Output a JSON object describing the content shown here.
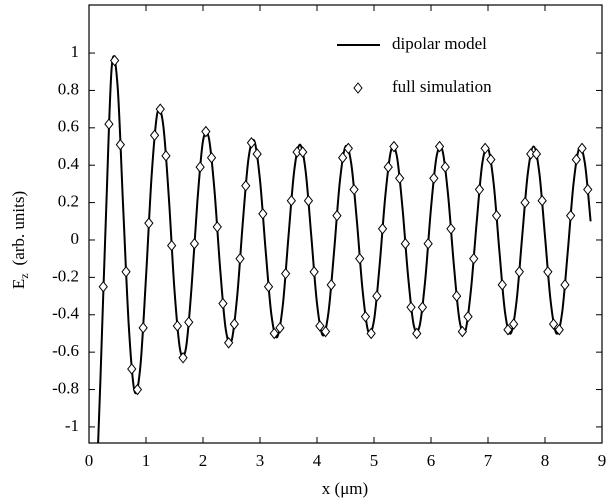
{
  "chart_data": {
    "type": "line",
    "xlabel": "x (μm)",
    "ylabel": {
      "main": "E",
      "sub": "z",
      "units": "(arb. units)"
    },
    "xlim": [
      0,
      9
    ],
    "ylim": [
      -1.086,
      1.257
    ],
    "xticks": [
      0,
      1,
      2,
      3,
      4,
      5,
      6,
      7,
      8,
      9
    ],
    "yticks": [
      -1,
      -0.8,
      -0.6,
      -0.4,
      -0.2,
      0,
      0.2,
      0.4,
      0.6,
      0.8,
      1
    ],
    "grid": false,
    "legend": "upper right",
    "series": [
      {
        "name": "dipolar model",
        "type": "line",
        "color": "#000000",
        "x": [
          0.16,
          0.2,
          0.3,
          0.4,
          0.5,
          0.6,
          0.7,
          0.8,
          0.9,
          1.0,
          1.1,
          1.2,
          1.3,
          1.4,
          1.5,
          1.6,
          1.7,
          1.8,
          1.9,
          2.0,
          2.1,
          2.2,
          2.3,
          2.4,
          2.5,
          2.6,
          2.7,
          2.8,
          2.9,
          3.0,
          3.1,
          3.2,
          3.3,
          3.4,
          3.5,
          3.6,
          3.7,
          3.8,
          3.9,
          4.0,
          4.1,
          4.2,
          4.3,
          4.4,
          4.5,
          4.6,
          4.7,
          4.8,
          4.9,
          5.0,
          5.1,
          5.2,
          5.3,
          5.4,
          5.5,
          5.6,
          5.7,
          5.8,
          5.9,
          6.0,
          6.1,
          6.2,
          6.3,
          6.4,
          6.5,
          6.6,
          6.7,
          6.8,
          6.9,
          7.0,
          7.1,
          7.2,
          7.3,
          7.4,
          7.5,
          7.6,
          7.7,
          7.8,
          7.9,
          8.0,
          8.1,
          8.2,
          8.3,
          8.4,
          8.5,
          8.6,
          8.7,
          8.8
        ],
        "values": [
          -1.085,
          -0.75,
          0.15,
          0.93,
          0.83,
          0.17,
          -0.47,
          -0.81,
          -0.68,
          -0.2,
          0.35,
          0.68,
          0.62,
          0.23,
          -0.27,
          -0.59,
          -0.58,
          -0.25,
          0.2,
          0.53,
          0.55,
          0.27,
          -0.15,
          -0.48,
          -0.54,
          -0.3,
          0.1,
          0.44,
          0.53,
          0.32,
          -0.06,
          -0.4,
          -0.52,
          -0.35,
          0.02,
          0.37,
          0.51,
          0.37,
          0.02,
          -0.34,
          -0.51,
          -0.39,
          -0.06,
          0.31,
          0.5,
          0.41,
          0.1,
          -0.27,
          -0.49,
          -0.43,
          -0.13,
          0.24,
          0.48,
          0.45,
          0.17,
          -0.2,
          -0.46,
          -0.46,
          -0.21,
          0.17,
          0.45,
          0.48,
          0.24,
          -0.13,
          -0.43,
          -0.49,
          -0.27,
          0.09,
          0.41,
          0.49,
          0.3,
          -0.06,
          -0.39,
          -0.5,
          -0.33,
          0.02,
          0.36,
          0.5,
          0.36,
          0.02,
          -0.33,
          -0.5,
          -0.39,
          -0.06,
          0.3,
          0.49,
          0.41,
          0.1
        ]
      },
      {
        "name": "full simulation",
        "type": "scatter",
        "marker": "diamond",
        "color": "#000000",
        "x": [
          0.25,
          0.35,
          0.45,
          0.55,
          0.65,
          0.75,
          0.85,
          0.95,
          1.05,
          1.15,
          1.25,
          1.35,
          1.45,
          1.55,
          1.65,
          1.75,
          1.85,
          1.95,
          2.05,
          2.15,
          2.25,
          2.35,
          2.45,
          2.55,
          2.65,
          2.75,
          2.85,
          2.95,
          3.05,
          3.15,
          3.25,
          3.35,
          3.45,
          3.55,
          3.65,
          3.75,
          3.85,
          3.95,
          4.05,
          4.15,
          4.25,
          4.35,
          4.45,
          4.55,
          4.65,
          4.75,
          4.85,
          4.95,
          5.05,
          5.15,
          5.25,
          5.35,
          5.45,
          5.55,
          5.65,
          5.75,
          5.85,
          5.95,
          6.05,
          6.15,
          6.25,
          6.35,
          6.45,
          6.55,
          6.65,
          6.75,
          6.85,
          6.95,
          7.05,
          7.15,
          7.25,
          7.35,
          7.45,
          7.55,
          7.65,
          7.75,
          7.85,
          7.95,
          8.05,
          8.15,
          8.25,
          8.35,
          8.45,
          8.55,
          8.65,
          8.75
        ],
        "values": [
          -0.25,
          0.62,
          0.96,
          0.51,
          -0.17,
          -0.69,
          -0.8,
          -0.47,
          0.09,
          0.56,
          0.7,
          0.45,
          -0.03,
          -0.46,
          -0.63,
          -0.44,
          -0.02,
          0.39,
          0.58,
          0.44,
          0.07,
          -0.34,
          -0.55,
          -0.45,
          -0.1,
          0.29,
          0.52,
          0.46,
          0.14,
          -0.25,
          -0.5,
          -0.47,
          -0.18,
          0.21,
          0.47,
          0.47,
          0.21,
          -0.17,
          -0.46,
          -0.49,
          -0.24,
          0.13,
          0.44,
          0.49,
          0.27,
          -0.1,
          -0.41,
          -0.5,
          -0.3,
          0.06,
          0.39,
          0.5,
          0.33,
          -0.02,
          -0.36,
          -0.5,
          -0.36,
          -0.02,
          0.33,
          0.5,
          0.39,
          0.06,
          -0.3,
          -0.49,
          -0.41,
          -0.1,
          0.27,
          0.49,
          0.43,
          0.13,
          -0.24,
          -0.48,
          -0.45,
          -0.17,
          0.2,
          0.46,
          0.46,
          0.21,
          -0.17,
          -0.45,
          -0.48,
          -0.24,
          0.13,
          0.43,
          0.49,
          0.27
        ]
      }
    ]
  }
}
